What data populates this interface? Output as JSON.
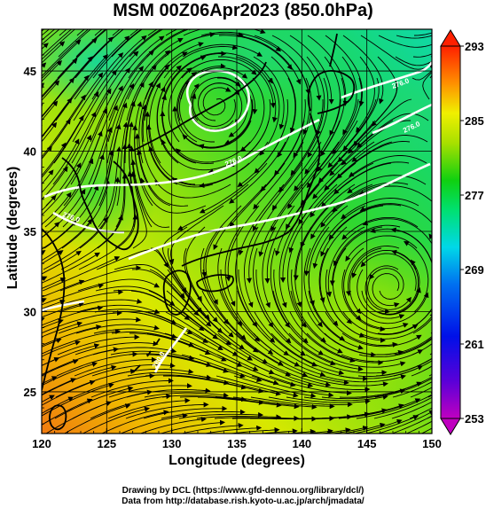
{
  "title": "MSM 00Z06Apr2023 (850.0hPa)",
  "xlabel": "Longitude (degrees)",
  "ylabel": "Latitude  (degrees)",
  "credit_line1": "Drawing by DCL (https://www.gfd-dennou.org/library/dcl/)",
  "credit_line2": "Data from http://database.rish.kyoto-u.ac.jp/arch/jmadata/",
  "chart_data": {
    "type": "heatmap",
    "xlim": [
      120,
      150
    ],
    "ylim": [
      22.4,
      47.6
    ],
    "x_ticks": [
      "120",
      "125",
      "130",
      "135",
      "140",
      "145",
      "150"
    ],
    "y_ticks": [
      "25",
      "30",
      "35",
      "40",
      "45"
    ],
    "colorbar": {
      "min": 253,
      "max": 293,
      "tick_labels": [
        "293",
        "285",
        "277",
        "269",
        "261",
        "253"
      ],
      "extend": "both"
    },
    "contour_labels": [
      "276.0",
      "276.0",
      "276.0",
      "276.0",
      "280.0"
    ]
  }
}
